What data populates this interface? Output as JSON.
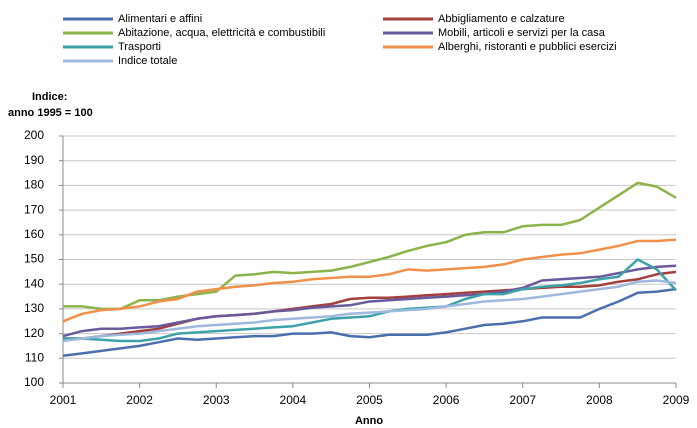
{
  "chart_data": {
    "type": "line",
    "y_label": [
      "Indice:",
      "anno 1995 = 100"
    ],
    "x_label": "Anno",
    "x": [
      2001,
      2001.25,
      2001.5,
      2001.75,
      2002,
      2002.25,
      2002.5,
      2002.75,
      2003,
      2003.25,
      2003.5,
      2003.75,
      2004,
      2004.25,
      2004.5,
      2004.75,
      2005,
      2005.25,
      2005.5,
      2005.75,
      2006,
      2006.25,
      2006.5,
      2006.75,
      2007,
      2007.25,
      2007.5,
      2007.75,
      2008,
      2008.25,
      2008.5,
      2008.75,
      2009
    ],
    "xlim": [
      2001,
      2009
    ],
    "xticks": [
      2001,
      2002,
      2003,
      2004,
      2005,
      2006,
      2007,
      2008,
      2009
    ],
    "ylim": [
      100,
      200
    ],
    "yticks": [
      100,
      110,
      120,
      130,
      140,
      150,
      160,
      170,
      180,
      190,
      200
    ],
    "grid": true,
    "series": [
      {
        "name": "Alimentari e affini",
        "color": "#4a6fae",
        "values": [
          111,
          112,
          113,
          114,
          115,
          116.5,
          118,
          117.5,
          118,
          118.5,
          119,
          119,
          120,
          120,
          120.5,
          119,
          118.5,
          119.5,
          119.5,
          119.5,
          120.5,
          122,
          123.5,
          124,
          125,
          126.5,
          126.5,
          126.5,
          130,
          133,
          136.5,
          137,
          138
        ]
      },
      {
        "name": "Abbigliamento e calzature",
        "color": "#a3403d",
        "values": [
          118,
          118,
          119,
          120,
          121,
          122,
          124,
          126,
          127,
          127.5,
          128,
          129,
          130,
          131,
          132,
          134,
          134.5,
          134.5,
          135,
          135.5,
          136,
          136.5,
          137,
          137.5,
          138,
          138.5,
          139,
          139,
          139.5,
          141,
          142,
          144,
          145
        ]
      },
      {
        "name": "Abitazione, acqua, elettricità e combustibili",
        "color": "#8cb34a",
        "values": [
          131,
          131,
          130,
          130,
          133.5,
          133.5,
          135,
          136,
          137,
          143.5,
          144,
          145,
          144.5,
          145,
          145.5,
          147,
          149,
          151,
          153.5,
          155.5,
          157,
          160,
          161,
          161,
          163.5,
          164,
          164,
          166,
          171,
          176,
          181,
          179.5,
          175
        ]
      },
      {
        "name": "Mobili, articoli e servizi per la casa",
        "color": "#6a5a9c",
        "values": [
          119,
          121,
          122,
          122,
          122.5,
          123,
          124.5,
          126,
          127,
          127.5,
          128,
          129,
          129.5,
          130.5,
          131,
          131.5,
          133,
          133.5,
          134,
          134.5,
          135,
          135.5,
          136,
          137,
          138.5,
          141.5,
          142,
          142.5,
          143,
          144.5,
          146,
          147,
          147.5
        ]
      },
      {
        "name": "Trasporti",
        "color": "#3ba3a8",
        "values": [
          118,
          118,
          117.5,
          117,
          117,
          118,
          120,
          120.5,
          121,
          121.5,
          122,
          122.5,
          123,
          124.5,
          126,
          126.5,
          127,
          129,
          130,
          130.5,
          131,
          134,
          136,
          136,
          138,
          139,
          139.5,
          140.5,
          142,
          143,
          150,
          146,
          137.5
        ]
      },
      {
        "name": "Alberghi, ristoranti e pubblici esercizi",
        "color": "#f0904a",
        "values": [
          125,
          128,
          129.5,
          130,
          131,
          133,
          134,
          137,
          138,
          139,
          139.5,
          140.5,
          141,
          142,
          142.5,
          143,
          143,
          144,
          146,
          145.5,
          146,
          146.5,
          147,
          148,
          150,
          151,
          152,
          152.5,
          154,
          155.5,
          157.5,
          157.5,
          158
        ]
      },
      {
        "name": "Indice totale",
        "color": "#9fb8dd",
        "values": [
          117,
          118,
          119,
          119.5,
          120,
          121,
          122,
          123,
          123.5,
          124,
          124.5,
          125.5,
          126,
          126.5,
          127,
          128,
          128.5,
          129,
          129.5,
          130,
          131,
          132,
          133,
          133.5,
          134,
          135,
          136,
          137,
          138,
          139,
          141,
          141.5,
          140.5
        ]
      }
    ]
  }
}
